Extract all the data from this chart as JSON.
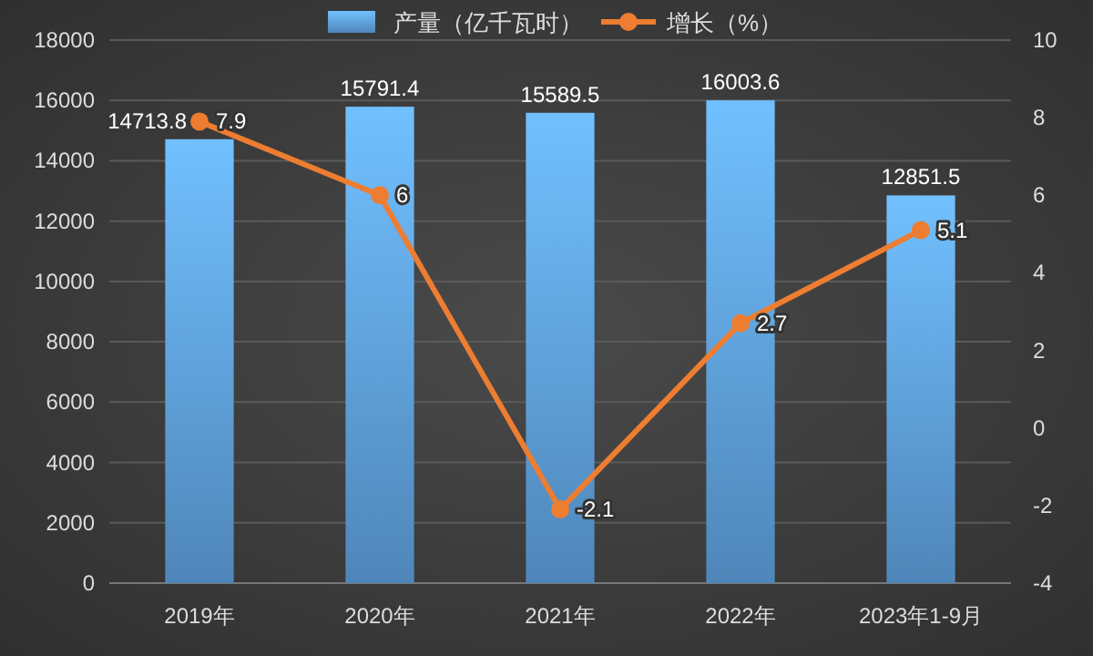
{
  "chart_data": {
    "type": "bar",
    "categories": [
      "2019年",
      "2020年",
      "2021年",
      "2022年",
      "2023年1-9月"
    ],
    "series": [
      {
        "name": "产量（亿千瓦时）",
        "color": "#5b9bd5",
        "values": [
          14713.8,
          15791.4,
          15589.5,
          16003.6,
          12851.5
        ]
      },
      {
        "name": "增长（%）",
        "type": "line",
        "axis": "y2",
        "color": "#ed7d31",
        "values": [
          7.9,
          6,
          -2.1,
          2.7,
          5.1
        ]
      }
    ],
    "ylim": [
      0,
      18000
    ],
    "yticks": [
      0,
      2000,
      4000,
      6000,
      8000,
      10000,
      12000,
      14000,
      16000,
      18000
    ],
    "y2lim": [
      -4,
      10
    ],
    "y2ticks": [
      -4,
      -2,
      0,
      2,
      4,
      6,
      8,
      10
    ],
    "grid": "y",
    "legend": "top",
    "data_labels": true,
    "marker": "circle"
  }
}
